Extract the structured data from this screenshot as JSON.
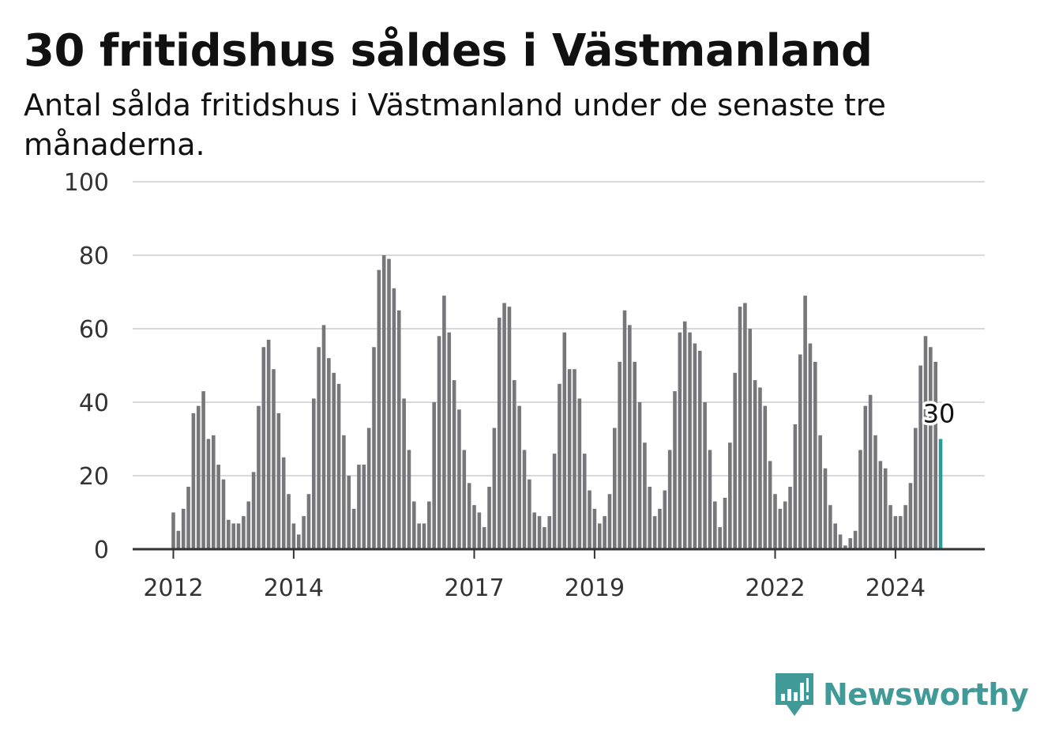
{
  "header": {
    "title": "30 fritidshus såldes i Västmanland",
    "subtitle": "Antal sålda fritidshus i Västmanland under de senaste tre månaderna."
  },
  "brand": {
    "name": "Newsworthy",
    "icon": "bar-chart-speech-bubble-icon",
    "color": "#3f9a98"
  },
  "colors": {
    "bar": "#77767b",
    "highlight": "#2a9d9a",
    "grid": "#d9d9d9",
    "axis": "#333333"
  },
  "chart_data": {
    "type": "bar",
    "x_ticks": [
      "2012",
      "2014",
      "2017",
      "2019",
      "2022",
      "2024"
    ],
    "y_ticks": [
      "0",
      "20",
      "40",
      "60",
      "80",
      "100"
    ],
    "ylim": [
      0,
      100
    ],
    "grid": true,
    "annotation": {
      "label": "30",
      "value": 30
    },
    "values": [
      10,
      5,
      11,
      17,
      37,
      39,
      43,
      30,
      31,
      23,
      19,
      8,
      7,
      7,
      9,
      13,
      21,
      39,
      55,
      57,
      49,
      37,
      25,
      15,
      7,
      4,
      9,
      15,
      41,
      55,
      61,
      52,
      48,
      45,
      31,
      20,
      11,
      23,
      23,
      33,
      55,
      76,
      80,
      79,
      71,
      65,
      41,
      27,
      13,
      7,
      7,
      13,
      40,
      58,
      69,
      59,
      46,
      38,
      27,
      18,
      12,
      10,
      6,
      17,
      33,
      63,
      67,
      66,
      46,
      39,
      27,
      19,
      10,
      9,
      6,
      9,
      26,
      45,
      59,
      49,
      49,
      41,
      26,
      16,
      11,
      7,
      9,
      15,
      33,
      51,
      65,
      61,
      51,
      40,
      29,
      17,
      9,
      11,
      16,
      27,
      43,
      59,
      62,
      59,
      56,
      54,
      40,
      27,
      13,
      6,
      14,
      29,
      48,
      66,
      67,
      60,
      46,
      44,
      39,
      24,
      15,
      11,
      13,
      17,
      34,
      53,
      69,
      56,
      51,
      31,
      22,
      12,
      7,
      4,
      1,
      3,
      5,
      27,
      39,
      42,
      31,
      24,
      22,
      12,
      9,
      9,
      12,
      18,
      33,
      50,
      58,
      55,
      51,
      30
    ]
  }
}
